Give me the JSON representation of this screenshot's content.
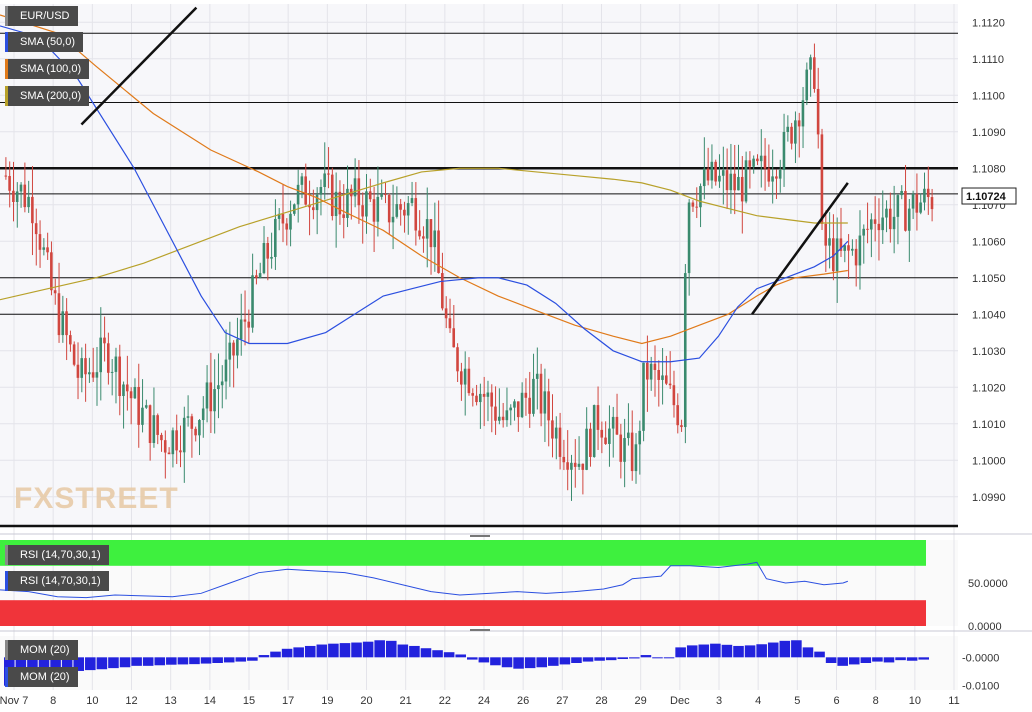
{
  "legend": {
    "symbol": "EUR/USD",
    "sma50": "SMA (50,0)",
    "sma100": "SMA (100,0)",
    "sma200": "SMA (200,0)",
    "rsi_top": "RSI (14,70,30,1)",
    "rsi_sub": "RSI (14,70,30,1)",
    "mom_top": "MOM (20)",
    "mom_sub": "MOM (20)"
  },
  "logo": "FXSTREET",
  "colors": {
    "up": "#3a8a6e",
    "down": "#d1463f",
    "sma50": "#2b4fe0",
    "sma100": "#e07a1a",
    "sma200": "#b8a12a",
    "rsi_overbought": "#3ef03e",
    "rsi_oversold": "#f0343a",
    "momentum": "#2222dd"
  },
  "chart_data": [
    {
      "type": "candlestick",
      "name": "EUR/USD",
      "last_price": "1.10724",
      "x_ticks": [
        "Nov 7",
        "8",
        "10",
        "12",
        "13",
        "14",
        "15",
        "17",
        "19",
        "20",
        "21",
        "22",
        "24",
        "26",
        "27",
        "28",
        "29",
        "Dec",
        "3",
        "4",
        "5",
        "6",
        "8",
        "10",
        "11"
      ],
      "y_ticks": [
        "1.1120",
        "1.1110",
        "1.1100",
        "1.1090",
        "1.1080",
        "1.1070",
        "1.1060",
        "1.1050",
        "1.1040",
        "1.1030",
        "1.1020",
        "1.1010",
        "1.1000",
        "1.0990"
      ],
      "ylim": [
        1.0982,
        1.1125
      ],
      "horizontal_levels": [
        1.1117,
        1.1098,
        1.108,
        1.1073,
        1.105,
        1.104,
        1.0982
      ],
      "trend_lines": [
        {
          "from": [
            0.085,
            1.1092
          ],
          "to": [
            0.205,
            1.1124
          ]
        },
        {
          "from": [
            0.785,
            1.104
          ],
          "to": [
            0.885,
            1.1076
          ]
        }
      ],
      "sma50": [
        [
          0,
          1.1119
        ],
        [
          0.04,
          1.1116
        ],
        [
          0.08,
          1.1105
        ],
        [
          0.14,
          1.108
        ],
        [
          0.18,
          1.106
        ],
        [
          0.21,
          1.1045
        ],
        [
          0.235,
          1.1035
        ],
        [
          0.26,
          1.1032
        ],
        [
          0.3,
          1.1032
        ],
        [
          0.34,
          1.1035
        ],
        [
          0.37,
          1.104
        ],
        [
          0.4,
          1.1045
        ],
        [
          0.43,
          1.1047
        ],
        [
          0.46,
          1.1049
        ],
        [
          0.5,
          1.105
        ],
        [
          0.52,
          1.105
        ],
        [
          0.55,
          1.1048
        ],
        [
          0.58,
          1.1043
        ],
        [
          0.61,
          1.1036
        ],
        [
          0.64,
          1.103
        ],
        [
          0.67,
          1.1027
        ],
        [
          0.7,
          1.1027
        ],
        [
          0.73,
          1.1028
        ],
        [
          0.75,
          1.1034
        ],
        [
          0.77,
          1.1042
        ],
        [
          0.79,
          1.1047
        ],
        [
          0.82,
          1.105
        ],
        [
          0.85,
          1.1053
        ],
        [
          0.87,
          1.1056
        ],
        [
          0.885,
          1.106
        ]
      ],
      "sma100": [
        [
          0,
          1.1122
        ],
        [
          0.06,
          1.1117
        ],
        [
          0.1,
          1.1108
        ],
        [
          0.16,
          1.1095
        ],
        [
          0.22,
          1.1085
        ],
        [
          0.27,
          1.1079
        ],
        [
          0.3,
          1.1075
        ],
        [
          0.33,
          1.1072
        ],
        [
          0.36,
          1.1068
        ],
        [
          0.4,
          1.1063
        ],
        [
          0.44,
          1.1056
        ],
        [
          0.48,
          1.105
        ],
        [
          0.52,
          1.1045
        ],
        [
          0.56,
          1.1041
        ],
        [
          0.6,
          1.1037
        ],
        [
          0.64,
          1.1034
        ],
        [
          0.67,
          1.1032
        ],
        [
          0.7,
          1.1034
        ],
        [
          0.73,
          1.1037
        ],
        [
          0.76,
          1.104
        ],
        [
          0.79,
          1.1045
        ],
        [
          0.81,
          1.1048
        ],
        [
          0.83,
          1.105
        ],
        [
          0.86,
          1.1051
        ],
        [
          0.885,
          1.1052
        ]
      ],
      "sma200": [
        [
          0,
          1.1044
        ],
        [
          0.05,
          1.1047
        ],
        [
          0.1,
          1.105
        ],
        [
          0.15,
          1.1054
        ],
        [
          0.2,
          1.1059
        ],
        [
          0.25,
          1.1064
        ],
        [
          0.3,
          1.1068
        ],
        [
          0.35,
          1.1072
        ],
        [
          0.4,
          1.1076
        ],
        [
          0.44,
          1.1079
        ],
        [
          0.48,
          1.108
        ],
        [
          0.52,
          1.108
        ],
        [
          0.56,
          1.1079
        ],
        [
          0.6,
          1.1078
        ],
        [
          0.64,
          1.1077
        ],
        [
          0.67,
          1.1076
        ],
        [
          0.7,
          1.1074
        ],
        [
          0.73,
          1.1071
        ],
        [
          0.76,
          1.1069
        ],
        [
          0.79,
          1.1067
        ],
        [
          0.82,
          1.1066
        ],
        [
          0.85,
          1.1065
        ],
        [
          0.885,
          1.1065
        ]
      ]
    },
    {
      "type": "line",
      "name": "RSI (14,70,30,1)",
      "y_ticks": [
        "50.0000",
        "0.0000"
      ],
      "ylim": [
        0,
        100
      ],
      "bands": {
        "overbought": [
          70,
          100
        ],
        "oversold": [
          0,
          30
        ]
      },
      "values": [
        [
          0,
          42
        ],
        [
          0.03,
          40
        ],
        [
          0.06,
          34
        ],
        [
          0.09,
          33
        ],
        [
          0.12,
          36
        ],
        [
          0.15,
          35
        ],
        [
          0.18,
          34
        ],
        [
          0.21,
          38
        ],
        [
          0.24,
          50
        ],
        [
          0.27,
          62
        ],
        [
          0.3,
          66
        ],
        [
          0.33,
          64
        ],
        [
          0.36,
          62
        ],
        [
          0.39,
          56
        ],
        [
          0.42,
          48
        ],
        [
          0.45,
          40
        ],
        [
          0.48,
          36
        ],
        [
          0.51,
          38
        ],
        [
          0.54,
          40
        ],
        [
          0.57,
          38
        ],
        [
          0.6,
          40
        ],
        [
          0.63,
          43
        ],
        [
          0.65,
          48
        ],
        [
          0.66,
          55
        ],
        [
          0.69,
          58
        ],
        [
          0.7,
          70
        ],
        [
          0.72,
          70
        ],
        [
          0.75,
          68
        ],
        [
          0.78,
          72
        ],
        [
          0.79,
          74
        ],
        [
          0.8,
          55
        ],
        [
          0.82,
          50
        ],
        [
          0.84,
          52
        ],
        [
          0.86,
          48
        ],
        [
          0.88,
          50
        ],
        [
          0.885,
          52
        ]
      ]
    },
    {
      "type": "bar",
      "name": "MOM (20)",
      "y_ticks": [
        "-0.0000",
        "-0.0100"
      ],
      "ylim": [
        -0.0115,
        0.0075
      ],
      "values": [
        -0.01,
        -0.0085,
        -0.0062,
        -0.0055,
        -0.0052,
        -0.005,
        -0.0048,
        -0.0045,
        -0.0042,
        -0.0038,
        -0.0035,
        -0.003,
        -0.003,
        -0.0028,
        -0.0026,
        -0.0025,
        -0.0024,
        -0.0022,
        -0.002,
        -0.0018,
        -0.0015,
        -0.0012,
        0.0008,
        0.002,
        0.003,
        0.0035,
        0.004,
        0.0045,
        0.0048,
        0.005,
        0.0052,
        0.0055,
        0.006,
        0.0058,
        0.0045,
        0.004,
        0.0032,
        0.0025,
        0.0018,
        0.001,
        -0.0008,
        -0.0018,
        -0.0028,
        -0.0035,
        -0.004,
        -0.0038,
        -0.0035,
        -0.003,
        -0.0025,
        -0.002,
        -0.0015,
        -0.0012,
        -0.001,
        -0.0006,
        -0.0004,
        0.0008,
        -0.0002,
        -0.0003,
        0.0035,
        0.0042,
        0.0045,
        0.0048,
        0.0044,
        0.004,
        0.0042,
        0.0046,
        0.0052,
        0.0058,
        0.006,
        0.0035,
        0.002,
        -0.002,
        -0.003,
        -0.0025,
        -0.002,
        -0.0015,
        -0.0018,
        -0.001,
        -0.0012,
        -0.0008
      ]
    }
  ]
}
